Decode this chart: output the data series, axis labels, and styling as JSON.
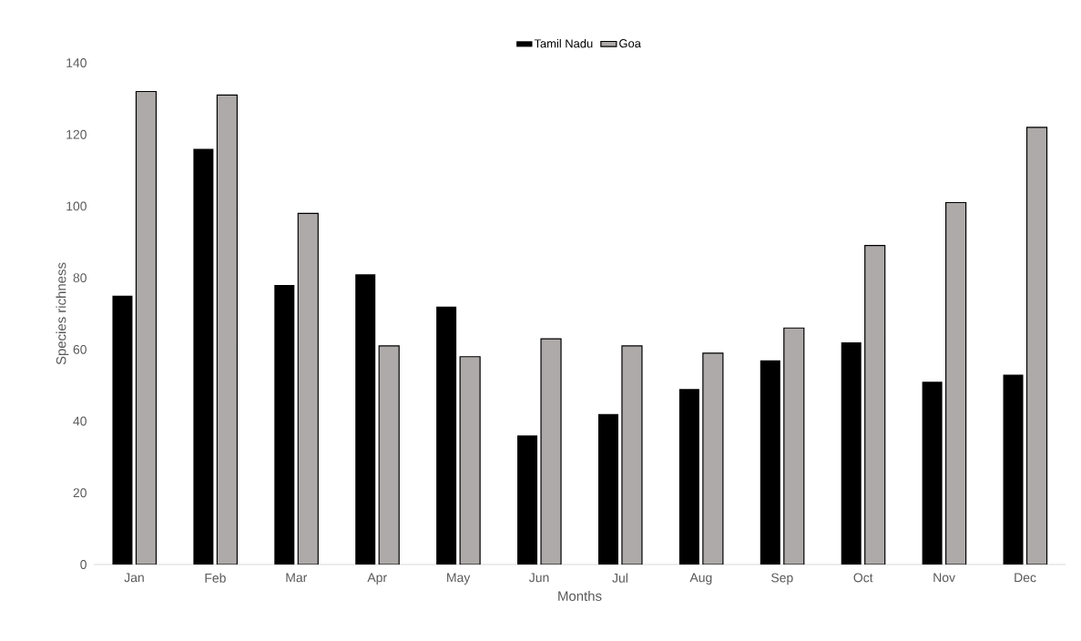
{
  "chart_data": {
    "type": "bar",
    "xlabel": "Months",
    "ylabel": "Species richness",
    "categories": [
      "Jan",
      "Feb",
      "Mar",
      "Apr",
      "May",
      "Jun",
      "Jul",
      "Aug",
      "Sep",
      "Oct",
      "Nov",
      "Dec"
    ],
    "series": [
      {
        "name": "Tamil Nadu",
        "color": "#000000",
        "values": [
          75,
          116,
          78,
          81,
          72,
          36,
          42,
          49,
          57,
          62,
          51,
          53
        ]
      },
      {
        "name": "Goa",
        "color": "#aeaaaa",
        "values": [
          132,
          131,
          98,
          61,
          58,
          63,
          61,
          59,
          66,
          89,
          101,
          122
        ]
      }
    ],
    "ylim": [
      0,
      140
    ],
    "yticks": [
      0,
      20,
      40,
      60,
      80,
      100,
      120,
      140
    ],
    "grid": false,
    "legend": "top"
  }
}
